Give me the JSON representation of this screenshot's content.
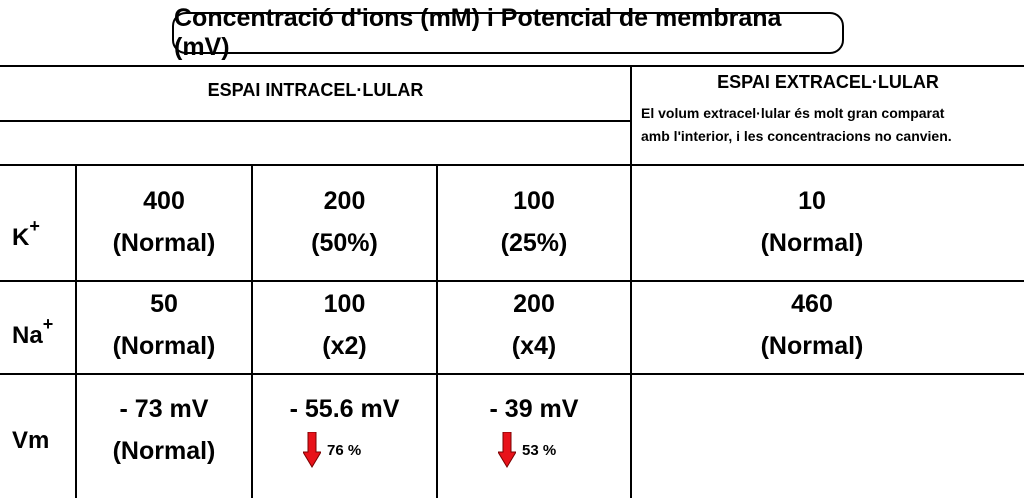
{
  "title": "Concentració d'ions (mM) i Potencial de membrana (mV)",
  "headers": {
    "intracellular": "ESPAI INTRACEL·LULAR",
    "extracellular": "ESPAI EXTRACEL·LULAR",
    "extracellular_note_line1": "El volum extracel·lular és molt gran comparat",
    "extracellular_note_line2": "amb l'interior, i les concentracions no canvien."
  },
  "rows": {
    "k": {
      "ion": "K",
      "charge": "+",
      "cells": [
        {
          "value": "400",
          "note": "(Normal)"
        },
        {
          "value": "200",
          "note": "(50%)"
        },
        {
          "value": "100",
          "note": "(25%)"
        }
      ],
      "extra": {
        "value": "10",
        "note": "(Normal)"
      }
    },
    "na": {
      "ion": "Na",
      "charge": "+",
      "cells": [
        {
          "value": "50",
          "note": "(Normal)"
        },
        {
          "value": "100",
          "note": "(x2)"
        },
        {
          "value": "200",
          "note": "(x4)"
        }
      ],
      "extra": {
        "value": "460",
        "note": "(Normal)"
      }
    },
    "vm": {
      "label": "Vm",
      "cells": [
        {
          "value": "- 73 mV",
          "note": "(Normal)"
        },
        {
          "value": "- 55.6 mV",
          "percent": "76 %"
        },
        {
          "value": "- 39 mV",
          "percent": "53 %"
        }
      ]
    }
  },
  "colors": {
    "arrow": "#e8121a",
    "arrow_outline": "#7a0000"
  },
  "icons": {
    "decrease": "red-down-arrow-icon"
  }
}
